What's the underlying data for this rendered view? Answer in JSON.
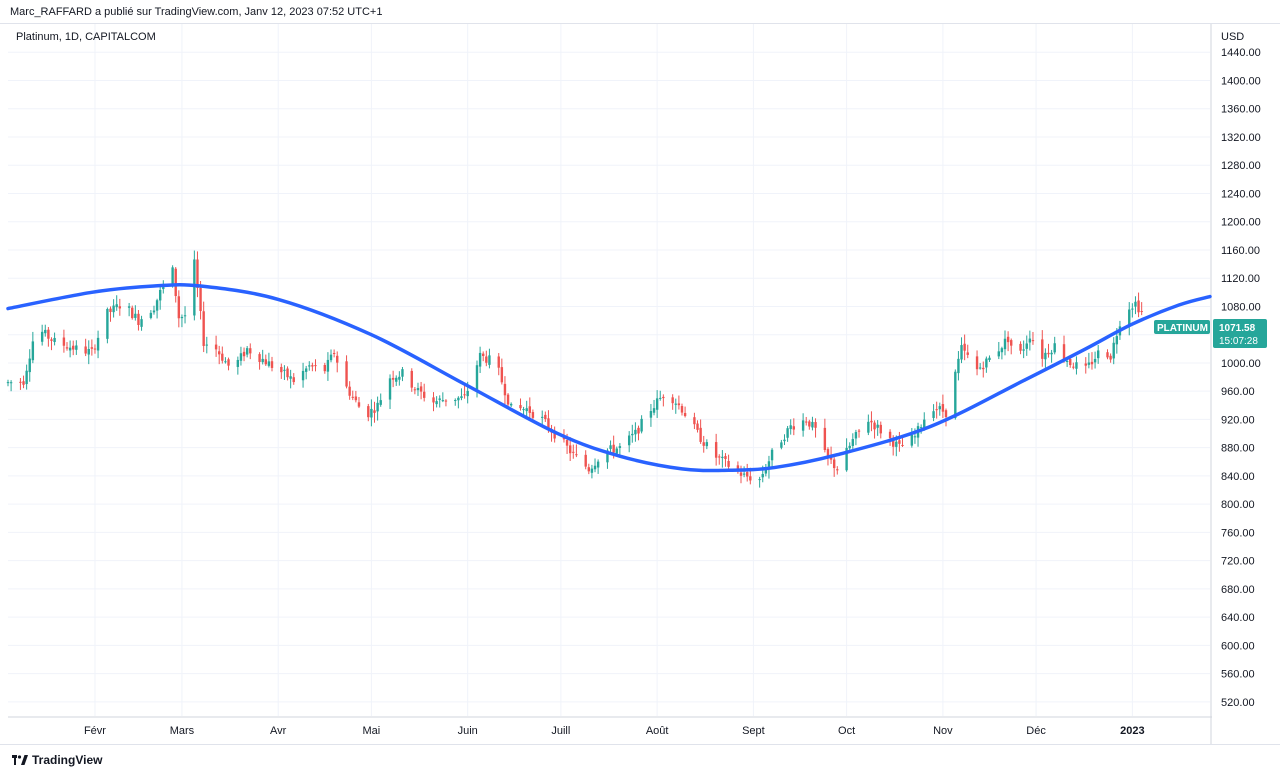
{
  "header": {
    "publish_text": "Marc_RAFFARD a publié sur TradingView.com, Janv 12, 2023 07:52 UTC+1"
  },
  "footer": {
    "brand": "TradingView"
  },
  "colors": {
    "up": "#26a69a",
    "down": "#ef5350",
    "curve": "#2962ff",
    "tag": "#26a69a",
    "grid": "#f0f3fa"
  },
  "chart_data": {
    "type": "candlestick",
    "title": "Platinum, 1D, CAPITALCOM",
    "symbol_label": "PLATINUM",
    "last_price": "1071.58",
    "countdown": "15:07:28",
    "currency": "USD",
    "y_ticks": [
      "1440.00",
      "1400.00",
      "1360.00",
      "1320.00",
      "1280.00",
      "1240.00",
      "1200.00",
      "1160.00",
      "1120.00",
      "1080.00",
      "1040.00",
      "1000.00",
      "960.00",
      "920.00",
      "880.00",
      "840.00",
      "800.00",
      "760.00",
      "720.00",
      "680.00",
      "640.00",
      "600.00",
      "560.00",
      "520.00"
    ],
    "ylim": [
      500,
      1480
    ],
    "x_ticks": [
      {
        "label": "Févr",
        "day": 31,
        "bold": false
      },
      {
        "label": "Mars",
        "day": 59,
        "bold": false
      },
      {
        "label": "Avr",
        "day": 90,
        "bold": false
      },
      {
        "label": "Mai",
        "day": 120,
        "bold": false
      },
      {
        "label": "Juin",
        "day": 151,
        "bold": false
      },
      {
        "label": "Juill",
        "day": 181,
        "bold": false
      },
      {
        "label": "Août",
        "day": 212,
        "bold": false
      },
      {
        "label": "Sept",
        "day": 243,
        "bold": false
      },
      {
        "label": "Oct",
        "day": 273,
        "bold": false
      },
      {
        "label": "Nov",
        "day": 304,
        "bold": false
      },
      {
        "label": "Déc",
        "day": 334,
        "bold": false
      },
      {
        "label": "2023",
        "day": 365,
        "bold": true
      }
    ],
    "xlim": [
      3,
      390
    ],
    "close_anchors": [
      [
        3,
        972
      ],
      [
        8,
        975
      ],
      [
        12,
        1050
      ],
      [
        18,
        1030
      ],
      [
        25,
        1020
      ],
      [
        30,
        1015
      ],
      [
        35,
        1070
      ],
      [
        40,
        1085
      ],
      [
        45,
        1060
      ],
      [
        50,
        1080
      ],
      [
        53,
        1110
      ],
      [
        56,
        1130
      ],
      [
        58,
        1065
      ],
      [
        62,
        1070
      ],
      [
        63,
        1140
      ],
      [
        66,
        1030
      ],
      [
        70,
        1020
      ],
      [
        75,
        990
      ],
      [
        80,
        1020
      ],
      [
        85,
        1005
      ],
      [
        90,
        990
      ],
      [
        95,
        975
      ],
      [
        100,
        995
      ],
      [
        105,
        990
      ],
      [
        108,
        1015
      ],
      [
        112,
        965
      ],
      [
        118,
        925
      ],
      [
        122,
        940
      ],
      [
        126,
        980
      ],
      [
        130,
        985
      ],
      [
        135,
        960
      ],
      [
        140,
        945
      ],
      [
        145,
        950
      ],
      [
        150,
        950
      ],
      [
        155,
        1010
      ],
      [
        160,
        1000
      ],
      [
        165,
        935
      ],
      [
        170,
        935
      ],
      [
        175,
        920
      ],
      [
        180,
        895
      ],
      [
        185,
        870
      ],
      [
        190,
        850
      ],
      [
        195,
        875
      ],
      [
        200,
        880
      ],
      [
        205,
        900
      ],
      [
        210,
        935
      ],
      [
        215,
        960
      ],
      [
        220,
        935
      ],
      [
        225,
        900
      ],
      [
        230,
        870
      ],
      [
        235,
        855
      ],
      [
        240,
        840
      ],
      [
        245,
        835
      ],
      [
        250,
        880
      ],
      [
        255,
        910
      ],
      [
        260,
        920
      ],
      [
        263,
        905
      ],
      [
        266,
        870
      ],
      [
        270,
        850
      ],
      [
        275,
        890
      ],
      [
        280,
        920
      ],
      [
        285,
        900
      ],
      [
        290,
        880
      ],
      [
        295,
        895
      ],
      [
        300,
        940
      ],
      [
        305,
        930
      ],
      [
        310,
        1020
      ],
      [
        315,
        990
      ],
      [
        320,
        1010
      ],
      [
        325,
        1035
      ],
      [
        328,
        1005
      ],
      [
        332,
        1040
      ],
      [
        336,
        1010
      ],
      [
        340,
        1025
      ],
      [
        345,
        1000
      ],
      [
        350,
        990
      ],
      [
        355,
        1020
      ],
      [
        358,
        1010
      ],
      [
        362,
        1075
      ],
      [
        366,
        1085
      ],
      [
        368,
        1072
      ]
    ],
    "cycle_curve": {
      "type": "line",
      "description": "fitted cycle",
      "points": [
        [
          3,
          1077
        ],
        [
          30,
          1100
        ],
        [
          50,
          1109
        ],
        [
          65,
          1109
        ],
        [
          90,
          1090
        ],
        [
          120,
          1040
        ],
        [
          150,
          970
        ],
        [
          180,
          900
        ],
        [
          200,
          868
        ],
        [
          220,
          850
        ],
        [
          235,
          848
        ],
        [
          250,
          852
        ],
        [
          270,
          870
        ],
        [
          300,
          910
        ],
        [
          330,
          975
        ],
        [
          350,
          1020
        ],
        [
          365,
          1055
        ],
        [
          380,
          1082
        ],
        [
          390,
          1094
        ]
      ]
    }
  }
}
